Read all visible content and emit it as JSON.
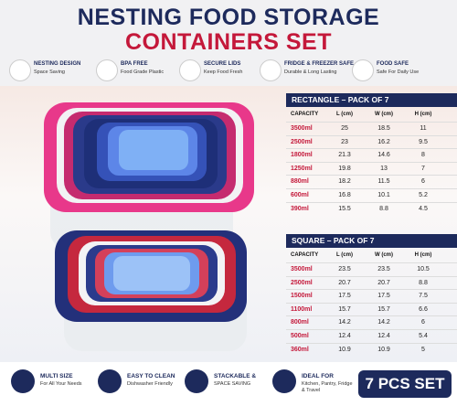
{
  "header": {
    "title_line1": "NESTING FOOD STORAGE",
    "title_line2": "CONTAINERS SET"
  },
  "features": [
    {
      "title": "NESTING DESIGN",
      "text": "Space Saving"
    },
    {
      "title": "BPA FREE",
      "text": "Food Grade Plastic"
    },
    {
      "title": "SECURE LIDS",
      "text": "Keep Food Fresh"
    },
    {
      "title": "FRIDGE & FREEZER SAFE",
      "text": "Durable & Long Lasting"
    },
    {
      "title": "FOOD SAFE",
      "text": "Safe For Daily Use"
    }
  ],
  "tables": [
    {
      "title": "RECTANGLE – PACK OF 7",
      "columns": [
        "CAPACITY",
        "L (cm)",
        "W (cm)",
        "H (cm)"
      ],
      "rows": [
        [
          "3500ml",
          25,
          18.5,
          11
        ],
        [
          "2500ml",
          23,
          16.2,
          9.5
        ],
        [
          "1800ml",
          21.3,
          14.6,
          8
        ],
        [
          "1250ml",
          19.8,
          13,
          7
        ],
        [
          "880ml",
          18.2,
          11.5,
          6
        ],
        [
          "600ml",
          16.8,
          10.1,
          5.2
        ],
        [
          "390ml",
          15.5,
          8.8,
          4.5
        ]
      ]
    },
    {
      "title": "SQUARE – PACK OF 7",
      "columns": [
        "CAPACITY",
        "L (cm)",
        "W (cm)",
        "H (cm)"
      ],
      "rows": [
        [
          "3500ml",
          23.5,
          23.5,
          10.5
        ],
        [
          "2500ml",
          20.7,
          20.7,
          8.8
        ],
        [
          "1500ml",
          17.5,
          17.5,
          7.5
        ],
        [
          "1100ml",
          15.7,
          15.7,
          6.6
        ],
        [
          "800ml",
          14.2,
          14.2,
          6
        ],
        [
          "500ml",
          12.4,
          12.4,
          5.4
        ],
        [
          "360ml",
          10.9,
          10.9,
          5
        ]
      ]
    }
  ],
  "benefits": [
    {
      "title": "MULTI SIZE",
      "text": "For All Your Needs"
    },
    {
      "title": "EASY TO CLEAN",
      "text": "Dishwasher Friendly"
    },
    {
      "title": "STACKABLE &",
      "text": "SPACE SAVING"
    },
    {
      "title": "IDEAL FOR",
      "text": "Kitchen, Pantry, Fridge & Travel"
    }
  ],
  "badge": "7 PCS SET"
}
